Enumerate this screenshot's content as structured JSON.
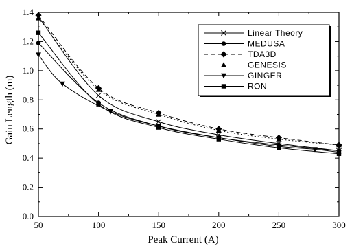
{
  "chart_data": {
    "type": "line",
    "xlabel": "Peak Current (A)",
    "ylabel": "Gain Length (m)",
    "xlim": [
      50,
      300
    ],
    "ylim": [
      0.0,
      1.4
    ],
    "x_ticks": [
      50,
      100,
      150,
      200,
      250,
      300
    ],
    "y_ticks": [
      0.0,
      0.2,
      0.4,
      0.6,
      0.8,
      1.0,
      1.2,
      1.4
    ],
    "x_tick_labels": [
      "50",
      "100",
      "150",
      "200",
      "250",
      "300"
    ],
    "y_tick_labels": [
      "0.0",
      "0.2",
      "0.4",
      "0.6",
      "0.8",
      "1.0",
      "1.2",
      "1.4"
    ],
    "grid": false,
    "legend_position": "top-right",
    "series": [
      {
        "name": "Linear Theory",
        "marker": "x",
        "dash": "solid",
        "x": [
          50,
          100,
          150,
          200,
          250,
          300
        ],
        "y": [
          1.37,
          0.83,
          0.65,
          0.56,
          0.5,
          0.45
        ]
      },
      {
        "name": "MEDUSA",
        "marker": "circle",
        "dash": "solid",
        "x": [
          50,
          100,
          150,
          200,
          250,
          300
        ],
        "y": [
          1.19,
          0.78,
          0.62,
          0.54,
          0.49,
          0.45
        ]
      },
      {
        "name": "TDA3D",
        "marker": "diamond",
        "dash": "dashed",
        "x": [
          50,
          100,
          150,
          200,
          250,
          300
        ],
        "y": [
          1.38,
          0.88,
          0.71,
          0.6,
          0.54,
          0.49
        ]
      },
      {
        "name": "GENESIS",
        "marker": "triangle-up",
        "dash": "dotted",
        "x": [
          50,
          100,
          150,
          200,
          250,
          300
        ],
        "y": [
          1.36,
          0.87,
          0.7,
          0.59,
          0.53,
          0.49
        ]
      },
      {
        "name": "GINGER",
        "marker": "triangle-down",
        "dash": "solid",
        "x": [
          50,
          70,
          110,
          150,
          200,
          250,
          280,
          300
        ],
        "y": [
          1.11,
          0.91,
          0.72,
          0.62,
          0.54,
          0.48,
          0.46,
          0.44
        ]
      },
      {
        "name": "RON",
        "marker": "square",
        "dash": "solid",
        "x": [
          50,
          100,
          150,
          200,
          250,
          300
        ],
        "y": [
          1.26,
          0.77,
          0.61,
          0.53,
          0.47,
          0.43
        ]
      }
    ]
  }
}
